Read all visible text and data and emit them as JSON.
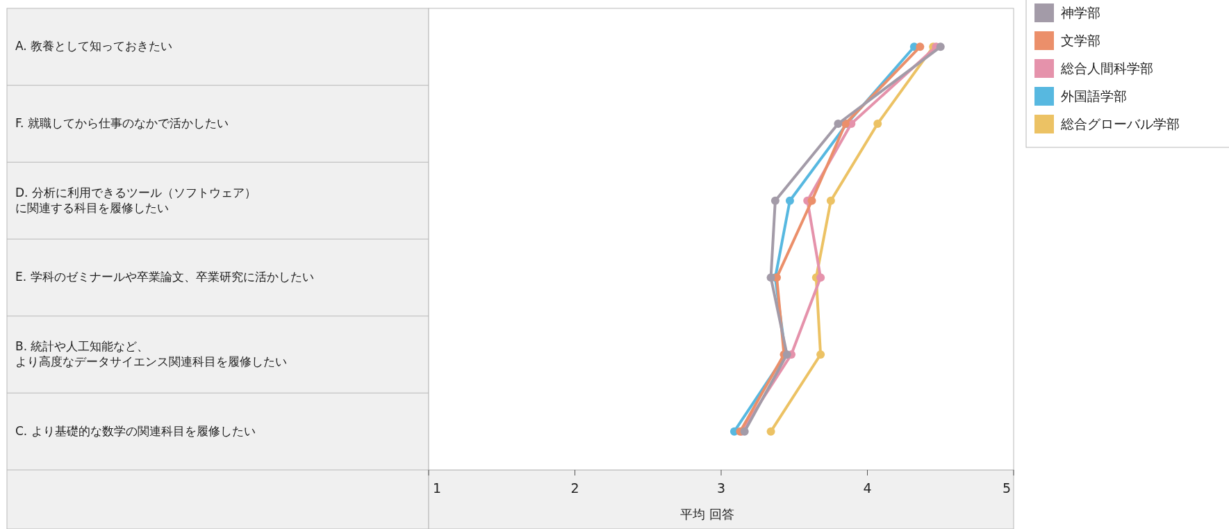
{
  "chart_data": {
    "type": "line",
    "orientation": "horizontal",
    "xlabel": "平均 回答",
    "categories": [
      "A. 教養として知っておきたい",
      "F. 就職してから仕事のなかで活かしたい",
      "D. 分析に利用できるツール（ソフトウェア）に関連する科目を履修したい",
      "E. 学科のゼミナールや卒業論文、卒業研究に活かしたい",
      "B. 統計や人工知能など、より高度なデータサイエンス関連科目を履修したい",
      "C. より基礎的な数学の関連科目を履修したい"
    ],
    "series": [
      {
        "name": "神学部",
        "color": "#a39ba8",
        "values": [
          4.5,
          3.8,
          3.37,
          3.34,
          3.45,
          3.16
        ]
      },
      {
        "name": "文学部",
        "color": "#eb8f6a",
        "values": [
          4.36,
          3.85,
          3.62,
          3.38,
          3.43,
          3.13
        ]
      },
      {
        "name": "総合人間科学部",
        "color": "#e592ab",
        "values": [
          4.47,
          3.89,
          3.59,
          3.68,
          3.48,
          3.14
        ]
      },
      {
        "name": "外国語学部",
        "color": "#57b8e0",
        "values": [
          4.32,
          3.86,
          3.47,
          3.37,
          3.44,
          3.09
        ]
      },
      {
        "name": "総合グローバル学部",
        "color": "#ecc264",
        "values": [
          4.45,
          4.07,
          3.75,
          3.65,
          3.68,
          3.34
        ]
      }
    ],
    "xlim": [
      1,
      5
    ],
    "xticks": [
      1,
      2,
      3,
      4,
      5
    ],
    "marker": "circle",
    "legend": "top right",
    "grid": false
  }
}
